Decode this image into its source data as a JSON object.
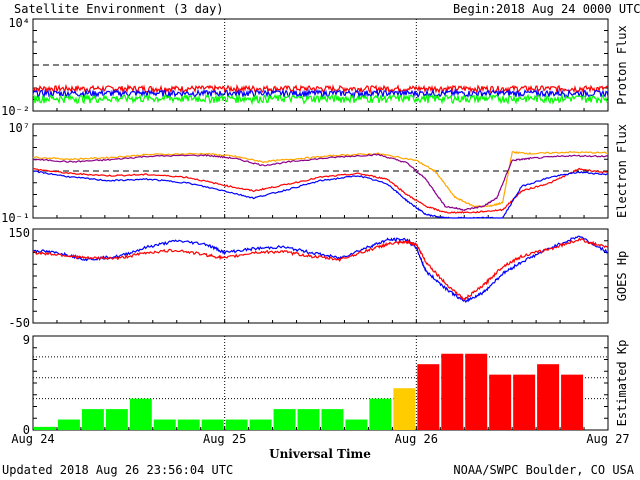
{
  "header": {
    "title": "Satellite Environment (3 day)",
    "begin_label": "Begin:",
    "begin_value": "2018 Aug 24 0000 UTC"
  },
  "footer": {
    "updated": "Updated 2018 Aug 26 23:56:04 UTC",
    "credit": "NOAA/SWPC Boulder, CO USA"
  },
  "x_axis": {
    "title": "Universal Time",
    "ticks": [
      "Aug 24",
      "Aug 25",
      "Aug 26",
      "Aug 27"
    ]
  },
  "colors": {
    "red": "#ff0000",
    "blue": "#0000ff",
    "green": "#00ff00",
    "orange": "#ffa500",
    "purple": "#8a008a",
    "yellow": "#ffcc00"
  },
  "chart_data": [
    {
      "type": "line",
      "ylabel": "Proton Flux",
      "scale": "log",
      "ylim": [
        0.01,
        10000
      ],
      "ytick_labels": [
        "10⁴",
        "10⁻²"
      ],
      "threshold": 10,
      "x_days": [
        0,
        3
      ],
      "series": [
        {
          "color": "red",
          "level": 0.3,
          "noise": 0.15
        },
        {
          "color": "blue",
          "level": 0.15,
          "noise": 0.15
        },
        {
          "color": "green",
          "level": 0.07,
          "noise": 0.18
        }
      ]
    },
    {
      "type": "line",
      "ylabel": "Electron Flux",
      "scale": "log",
      "ylim": [
        0.1,
        10000000
      ],
      "ytick_labels": [
        "10⁷",
        "10⁻¹"
      ],
      "threshold": 1000,
      "series": [
        {
          "color": "orange",
          "x": [
            0,
            0.2,
            0.4,
            0.6,
            0.9,
            1.05,
            1.2,
            1.4,
            1.6,
            1.8,
            2.0,
            2.1,
            2.2,
            2.3,
            2.38,
            2.45,
            2.5,
            2.6,
            2.8,
            3.0
          ],
          "y": [
            15000,
            10000,
            14000,
            25000,
            30000,
            18000,
            6000,
            12000,
            22000,
            30000,
            8000,
            900,
            6,
            1,
            1,
            2,
            40000,
            30000,
            40000,
            35000
          ]
        },
        {
          "color": "purple",
          "x": [
            0,
            0.2,
            0.4,
            0.6,
            0.9,
            1.05,
            1.2,
            1.4,
            1.6,
            1.8,
            1.95,
            2.05,
            2.15,
            2.25,
            2.35,
            2.42,
            2.5,
            2.6,
            2.8,
            3.0
          ],
          "y": [
            10000,
            6000,
            9000,
            18000,
            22000,
            12000,
            3000,
            8000,
            16000,
            25000,
            5000,
            200,
            1,
            0.5,
            1,
            5,
            8000,
            12000,
            20000,
            18000
          ]
        },
        {
          "color": "red",
          "x": [
            0,
            0.2,
            0.4,
            0.6,
            0.8,
            1.0,
            1.15,
            1.3,
            1.5,
            1.7,
            1.85,
            1.95,
            2.05,
            2.15,
            2.3,
            2.45,
            2.55,
            2.7,
            2.85,
            3.0
          ],
          "y": [
            1500,
            600,
            400,
            500,
            300,
            60,
            20,
            60,
            300,
            600,
            200,
            10,
            1,
            0.3,
            0.3,
            0.5,
            20,
            100,
            1500,
            700
          ]
        },
        {
          "color": "blue",
          "x": [
            0,
            0.2,
            0.4,
            0.6,
            0.8,
            1.0,
            1.15,
            1.3,
            1.5,
            1.7,
            1.85,
            1.95,
            2.05,
            2.15,
            2.3,
            2.45,
            2.55,
            2.7,
            2.85,
            3.0
          ],
          "y": [
            1000,
            300,
            150,
            200,
            100,
            20,
            5,
            20,
            150,
            400,
            80,
            3,
            0.2,
            0.1,
            0.1,
            0.1,
            50,
            300,
            800,
            500
          ]
        }
      ]
    },
    {
      "type": "line",
      "ylabel": "GOES Hp",
      "scale": "linear",
      "ylim": [
        -50,
        150
      ],
      "ytick_labels": [
        "150",
        "-50"
      ],
      "series": [
        {
          "color": "blue",
          "x": [
            0,
            0.15,
            0.28,
            0.45,
            0.6,
            0.75,
            0.9,
            1.0,
            1.15,
            1.3,
            1.45,
            1.6,
            1.75,
            1.85,
            1.95,
            2.0,
            2.05,
            2.15,
            2.25,
            2.35,
            2.45,
            2.55,
            2.7,
            2.85,
            3.0
          ],
          "y": [
            105,
            98,
            85,
            92,
            112,
            125,
            118,
            100,
            108,
            112,
            100,
            88,
            112,
            127,
            128,
            110,
            60,
            25,
            -5,
            15,
            55,
            80,
            110,
            135,
            100
          ]
        },
        {
          "color": "red",
          "x": [
            0,
            0.15,
            0.28,
            0.45,
            0.6,
            0.75,
            0.9,
            1.0,
            1.15,
            1.3,
            1.45,
            1.6,
            1.75,
            1.85,
            1.95,
            2.0,
            2.05,
            2.15,
            2.25,
            2.35,
            2.45,
            2.55,
            2.7,
            2.85,
            3.0
          ],
          "y": [
            100,
            95,
            88,
            88,
            100,
            105,
            95,
            88,
            100,
            102,
            92,
            85,
            105,
            118,
            122,
            118,
            80,
            35,
            0,
            30,
            70,
            92,
            108,
            128,
            110
          ]
        }
      ]
    },
    {
      "type": "bar",
      "ylabel": "Estimated Kp",
      "ylim": [
        0,
        9
      ],
      "ytick_labels": [
        "9",
        "0"
      ],
      "values": [
        0.3,
        1,
        2,
        2,
        3,
        1,
        1,
        1,
        1,
        1,
        2,
        2,
        2,
        1,
        3,
        4,
        6.3,
        7.3,
        7.3,
        5.3,
        5.3,
        6.3,
        5.3
      ],
      "bar_colors": [
        "green",
        "green",
        "green",
        "green",
        "green",
        "green",
        "green",
        "green",
        "green",
        "green",
        "green",
        "green",
        "green",
        "green",
        "green",
        "yellow",
        "red",
        "red",
        "red",
        "red",
        "red",
        "red",
        "red"
      ]
    }
  ]
}
